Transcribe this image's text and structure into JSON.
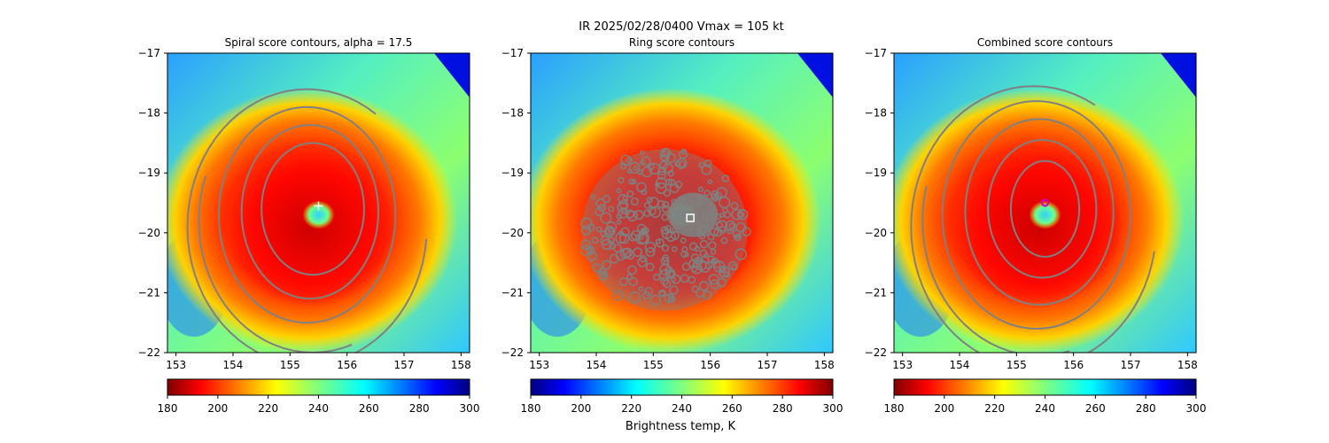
{
  "figure": {
    "suptitle": "IR  2025/02/28/0400    Vmax = 105 kt",
    "colorbar_label": "Brightness temp, K"
  },
  "chart_data": [
    {
      "type": "heatmap",
      "title": "Spiral score contours, alpha = 17.5",
      "xlim": [
        152.85,
        158.15
      ],
      "ylim": [
        -22,
        -17
      ],
      "xticks": [
        "153",
        "154",
        "155",
        "156",
        "157",
        "158"
      ],
      "yticks": [
        "−17",
        "−18",
        "−19",
        "−20",
        "−21",
        "−22"
      ],
      "colormap": "jet_r",
      "colorbar": {
        "min": 180,
        "max": 300,
        "ticks": [
          "180",
          "200",
          "220",
          "240",
          "260",
          "280",
          "300"
        ]
      },
      "center_marker": {
        "lon": 155.5,
        "lat": -19.55,
        "shape": "plus",
        "color": "#ffffff"
      },
      "contour_color": "#808080",
      "contour_rings": [
        {
          "cx": 155.3,
          "cy": -19.7,
          "rx": 1.55,
          "ry": 1.8
        },
        {
          "cx": 155.35,
          "cy": -19.65,
          "rx": 1.2,
          "ry": 1.45
        },
        {
          "cx": 155.4,
          "cy": -19.6,
          "rx": 0.9,
          "ry": 1.1
        }
      ],
      "contour_arcs": [
        {
          "cx": 155.3,
          "cy": -19.9,
          "rx": 2.1,
          "ry": 2.3,
          "a0": 55,
          "a1": 355
        },
        {
          "cx": 155.4,
          "cy": -19.8,
          "rx": 2.0,
          "ry": 2.2,
          "a0": 160,
          "a1": 290
        }
      ]
    },
    {
      "type": "heatmap",
      "title": "Ring score contours",
      "xlim": [
        152.85,
        158.15
      ],
      "ylim": [
        -22,
        -17
      ],
      "xticks": [
        "153",
        "154",
        "155",
        "156",
        "157",
        "158"
      ],
      "yticks": [
        "−17",
        "−18",
        "−19",
        "−20",
        "−21",
        "−22"
      ],
      "colormap": "jet",
      "colorbar": {
        "min": 180,
        "max": 300,
        "ticks": [
          "180",
          "200",
          "220",
          "240",
          "260",
          "280",
          "300"
        ]
      },
      "center_marker": {
        "lon": 155.65,
        "lat": -19.75,
        "shape": "square",
        "color": "#ffffff"
      },
      "contour_color": "#808080",
      "ring_blob": {
        "cx": 155.2,
        "cy": -19.95,
        "rx": 1.45,
        "ry": 1.35
      }
    },
    {
      "type": "heatmap",
      "title": "Combined score contours",
      "xlim": [
        152.85,
        158.15
      ],
      "ylim": [
        -22,
        -17
      ],
      "xticks": [
        "153",
        "154",
        "155",
        "156",
        "157",
        "158"
      ],
      "yticks": [
        "−17",
        "−18",
        "−19",
        "−20",
        "−21",
        "−22"
      ],
      "colormap": "jet_r",
      "colorbar": {
        "min": 180,
        "max": 300,
        "ticks": [
          "180",
          "200",
          "220",
          "240",
          "260",
          "280",
          "300"
        ]
      },
      "center_marker": {
        "lon": 155.5,
        "lat": -19.5,
        "shape": "circle",
        "color": "#cc00cc"
      },
      "contour_color": "#808080",
      "contour_rings": [
        {
          "cx": 155.35,
          "cy": -19.7,
          "rx": 1.65,
          "ry": 1.9
        },
        {
          "cx": 155.4,
          "cy": -19.65,
          "rx": 1.3,
          "ry": 1.55
        },
        {
          "cx": 155.45,
          "cy": -19.6,
          "rx": 0.95,
          "ry": 1.15
        },
        {
          "cx": 155.5,
          "cy": -19.6,
          "rx": 0.6,
          "ry": 0.8
        }
      ],
      "contour_arcs": [
        {
          "cx": 155.3,
          "cy": -19.9,
          "rx": 2.15,
          "ry": 2.35,
          "a0": 60,
          "a1": 350
        },
        {
          "cx": 155.4,
          "cy": -19.8,
          "rx": 2.05,
          "ry": 2.25,
          "a0": 165,
          "a1": 285
        }
      ]
    }
  ]
}
